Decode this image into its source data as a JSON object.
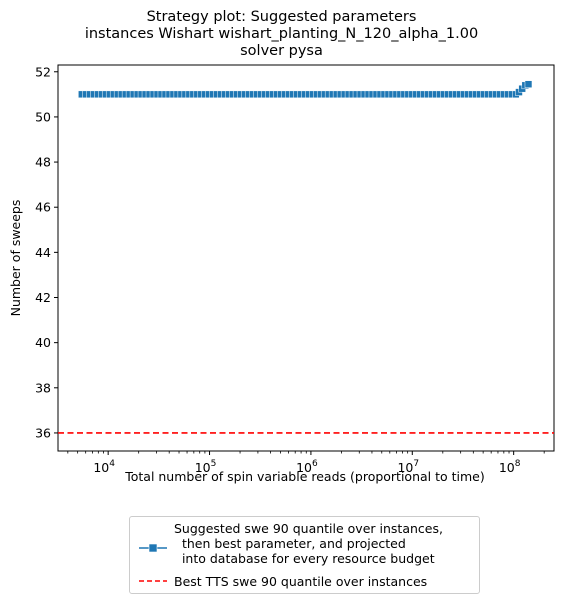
{
  "chart_data": {
    "type": "line",
    "title_lines": [
      "Strategy plot: Suggested parameters",
      "instances Wishart wishart_planting_N_120_alpha_1.00",
      "solver pysa"
    ],
    "xlabel": "Total number of spin variable reads (proportional to time)",
    "ylabel": "Number of sweeps",
    "xscale": "log",
    "xlim": [
      3200,
      250000000
    ],
    "ylim": [
      35.2,
      52.3
    ],
    "xticks": [
      {
        "value": 10000,
        "base": "10",
        "exp": "4"
      },
      {
        "value": 100000,
        "base": "10",
        "exp": "5"
      },
      {
        "value": 1000000,
        "base": "10",
        "exp": "6"
      },
      {
        "value": 10000000,
        "base": "10",
        "exp": "7"
      },
      {
        "value": 100000000,
        "base": "10",
        "exp": "8"
      }
    ],
    "yticks": [
      36,
      38,
      40,
      42,
      44,
      46,
      48,
      50,
      52
    ],
    "grid": false,
    "legend_position": "below",
    "series": [
      {
        "name": "Suggested swe 90 quantile over instances,\n  then best parameter, and projected\n  into database for every resource budget",
        "color": "#1f77b4",
        "marker": "square",
        "x_start": 5500,
        "x_break": 105000000,
        "x_end": 140000000,
        "count": 110,
        "y_plateau": 51,
        "tail_y": [
          51.1,
          51.25,
          51.4,
          51.45
        ]
      },
      {
        "name": "Best TTS swe 90 quantile over instances",
        "color": "#ff0000",
        "style": "dashed",
        "y": 36
      }
    ]
  }
}
